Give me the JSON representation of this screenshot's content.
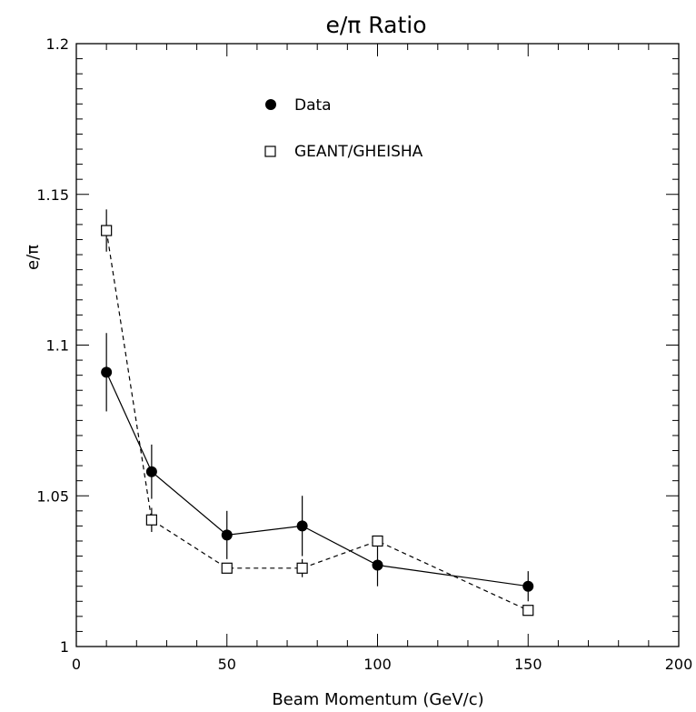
{
  "chart_data": {
    "type": "scatter",
    "title": "e/π Ratio",
    "xlabel": "Beam Momentum (GeV/c)",
    "ylabel": "e/π",
    "xlim": [
      0,
      200
    ],
    "ylim": [
      1,
      1.2
    ],
    "x_ticks": [
      "0",
      "50",
      "100",
      "150",
      "200"
    ],
    "y_ticks": [
      "1",
      "1.05",
      "1.1",
      "1.15",
      "1.2"
    ],
    "grid": false,
    "legend_position": "top-center",
    "series": [
      {
        "name": "Data",
        "marker": "filled-circle",
        "line": "solid",
        "color": "#000000",
        "x": [
          10,
          25,
          50,
          75,
          100,
          150
        ],
        "y": [
          1.091,
          1.058,
          1.037,
          1.04,
          1.027,
          1.02
        ],
        "y_err": [
          0.013,
          0.009,
          0.008,
          0.01,
          0.007,
          0.005
        ]
      },
      {
        "name": "GEANT/GHEISHA",
        "marker": "open-square",
        "line": "dashed",
        "color": "#000000",
        "x": [
          10,
          25,
          50,
          75,
          100,
          150
        ],
        "y": [
          1.138,
          1.042,
          1.026,
          1.026,
          1.035,
          1.012
        ],
        "y_err": [
          0.007,
          0.004,
          0.0,
          0.003,
          0.0,
          0.0
        ]
      }
    ]
  }
}
